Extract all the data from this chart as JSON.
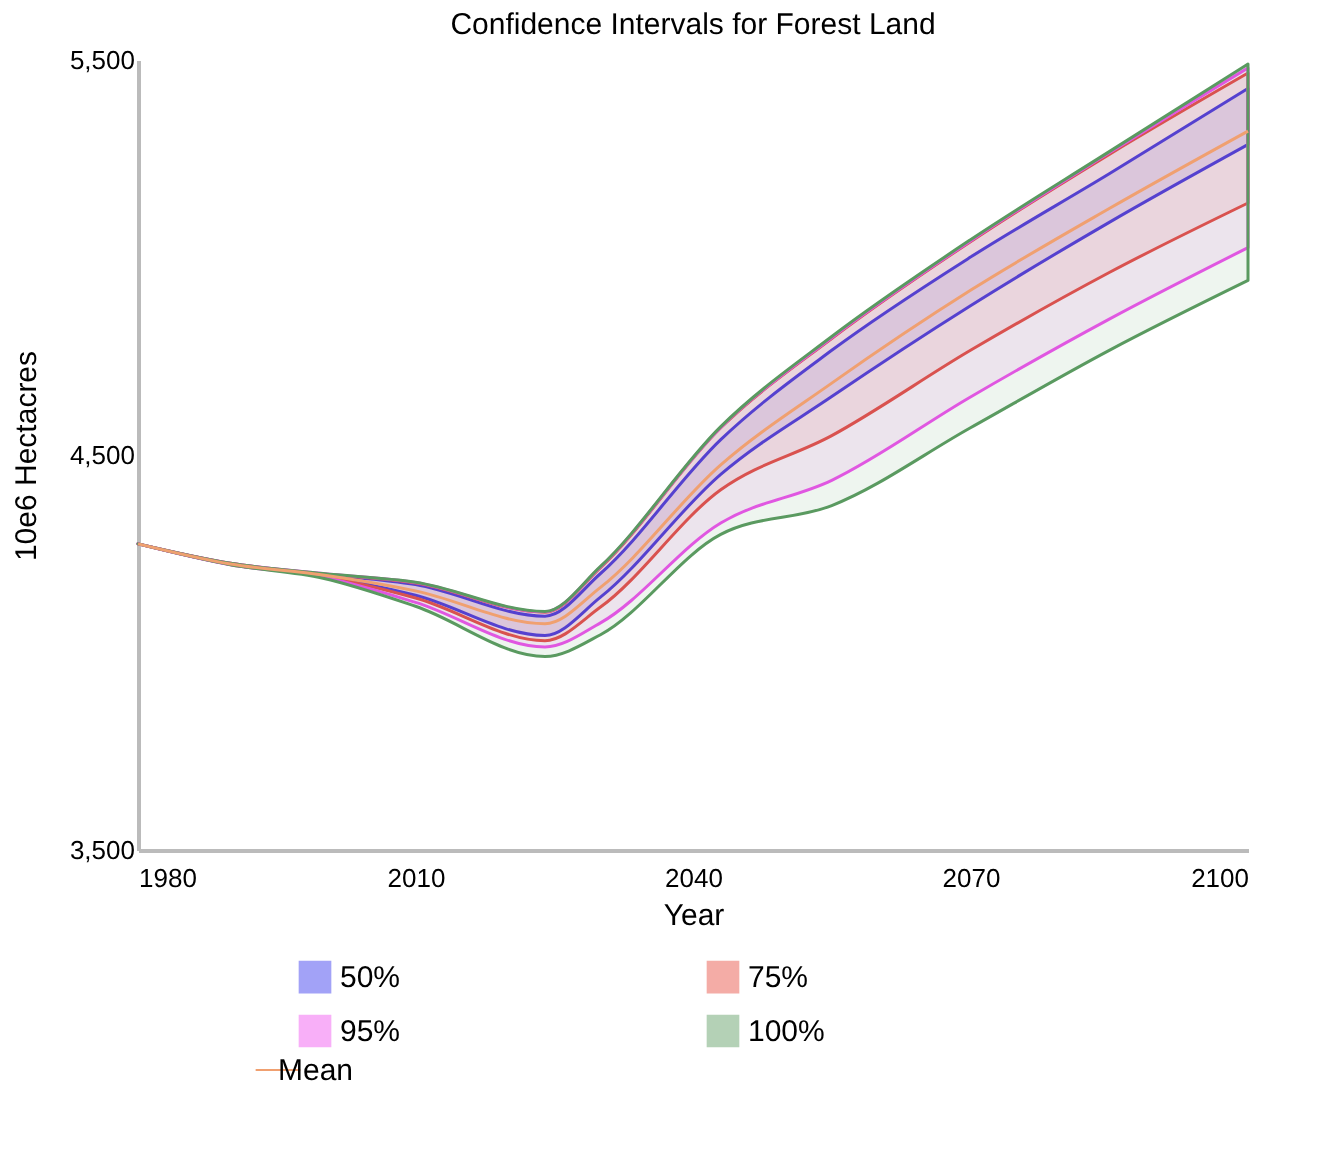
{
  "chart_data": {
    "type": "line",
    "title": "Confidence Intervals for Forest Land",
    "xlabel": "Year",
    "ylabel": "10e6 Hectacres",
    "x": [
      1980,
      1990,
      2000,
      2010,
      2024,
      2030,
      2043,
      2055,
      2070,
      2085,
      2100
    ],
    "xlim": [
      1980,
      2100
    ],
    "xticks": [
      1980,
      2010,
      2040,
      2070,
      2100
    ],
    "ylim": [
      3500,
      5500
    ],
    "yticks": [
      {
        "value": 3500,
        "label": "3,500"
      },
      {
        "value": 4500,
        "label": "4,500"
      },
      {
        "value": 5500,
        "label": "5,500"
      }
    ],
    "grid": false,
    "legend": "bottom",
    "marker": "none",
    "line_style": "solid",
    "series": [
      {
        "name": "50%",
        "type": "area",
        "color": "#3333ee",
        "values": [
          null,
          null,
          null,
          null,
          null,
          null,
          null,
          null,
          null,
          null,
          null
        ],
        "lower": [
          4275,
          4223,
          4194,
          4145,
          4043,
          4140,
          4451,
          4648,
          4878,
          5089,
          5286
        ],
        "upper": [
          4275,
          4225,
          4198,
          4172,
          4092,
          4200,
          4539,
          4765,
          5001,
          5212,
          5428
        ]
      },
      {
        "name": "75%",
        "type": "area",
        "color": "#e84a3c",
        "values": [
          null,
          null,
          null,
          null,
          null,
          null,
          null,
          null,
          null,
          null,
          null
        ],
        "lower": [
          4275,
          4223,
          4193,
          4138,
          4030,
          4115,
          4412,
          4549,
          4765,
          4962,
          5138
        ],
        "upper": [
          4275,
          4226,
          4199,
          4176,
          4102,
          4215,
          4569,
          4795,
          5040,
          5261,
          5467
        ]
      },
      {
        "name": "95%",
        "type": "area",
        "color": "#f050f0",
        "values": [
          null,
          null,
          null,
          null,
          null,
          null,
          null,
          null,
          null,
          null,
          null
        ],
        "lower": [
          4275,
          4222,
          4191,
          4127,
          4014,
          4075,
          4328,
          4436,
          4647,
          4844,
          5025
        ],
        "upper": [
          4275,
          4226,
          4200,
          4177,
          4103,
          4217,
          4570,
          4797,
          5042,
          5265,
          5480
        ]
      },
      {
        "name": "100%",
        "type": "area",
        "color": "#5a9a60",
        "values": [
          null,
          null,
          null,
          null,
          null,
          null,
          null,
          null,
          null,
          null,
          null
        ],
        "lower": [
          4275,
          4222,
          4188,
          4117,
          3990,
          4045,
          4299,
          4372,
          4569,
          4765,
          4942
        ],
        "upper": [
          4275,
          4226,
          4200,
          4178,
          4104,
          4218,
          4572,
          4800,
          5045,
          5268,
          5490
        ]
      },
      {
        "name": "Mean",
        "type": "line",
        "color": "#f0a070",
        "values": [
          4275,
          4224,
          4196,
          4156,
          4073,
          4165,
          4475,
          4682,
          4917,
          5124,
          5320
        ]
      }
    ]
  }
}
